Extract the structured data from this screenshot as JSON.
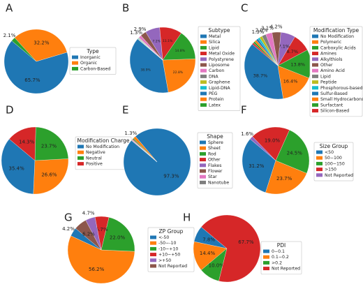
{
  "chart_data": [
    {
      "type": "pie",
      "panel_label": "A",
      "legend_title": "Type",
      "categories": [
        "Inorganic",
        "Organic",
        "Carbon-Based"
      ],
      "values": [
        65.7,
        32.2,
        2.1
      ],
      "value_labels": [
        "65.7%",
        "32.2%",
        "2.1%"
      ],
      "colors": [
        "#1f77b4",
        "#ff7f0e",
        "#2ca02c"
      ]
    },
    {
      "type": "pie",
      "panel_label": "B",
      "legend_title": "Subtype",
      "categories": [
        "Metal",
        "Silica",
        "Lipid",
        "Metal Oxide",
        "Polystyrene",
        "Liposome",
        "Carbon",
        "DNA",
        "Graphene",
        "Lipid-DNA",
        "PEG",
        "Protein",
        "Latex"
      ],
      "values": [
        38.9,
        22.8,
        14.8,
        11.1,
        7.2,
        2.9,
        1.3,
        0.2,
        0.2,
        0.2,
        0.2,
        0.1,
        0.1
      ],
      "value_labels": [
        "38.9%",
        "22.8%",
        "14.8%",
        "11.1%",
        "7.2%",
        "2.9%",
        "1.3%",
        null,
        null,
        null,
        null,
        null,
        null
      ],
      "colors": [
        "#1f77b4",
        "#ff7f0e",
        "#2ca02c",
        "#d62728",
        "#9467bd",
        "#8c564b",
        "#e377c2",
        "#7f7f7f",
        "#bcbd22",
        "#17becf",
        "#1f77b4",
        "#ff7f0e",
        "#2ca02c"
      ]
    },
    {
      "type": "pie",
      "panel_label": "C",
      "legend_title": "Modification Type",
      "categories": [
        "No Modification",
        "Polymeric",
        "Carboxylic Acids",
        "Amines",
        "Alkylthiols",
        "Other",
        "Amino Acid",
        "Lipid",
        "Peptide",
        "Phosphorous-based",
        "Sulfur-Based",
        "Small Hydrocarbons",
        "Surfactant",
        "Silicon-Based"
      ],
      "values": [
        38.7,
        16.4,
        13.8,
        8.7,
        7.1,
        4.2,
        3.1,
        2.0,
        1.3,
        1.0,
        1.0,
        1.0,
        0.9,
        0.8
      ],
      "value_labels": [
        "38.7%",
        "16.4%",
        "13.8%",
        "8.7%",
        "7.1%",
        "4.2%",
        "3.1%",
        "2.0%",
        "1.3%",
        null,
        null,
        null,
        null,
        null
      ],
      "colors": [
        "#1f77b4",
        "#ff7f0e",
        "#2ca02c",
        "#d62728",
        "#9467bd",
        "#8c564b",
        "#e377c2",
        "#7f7f7f",
        "#bcbd22",
        "#17becf",
        "#1f77b4",
        "#ff7f0e",
        "#2ca02c",
        "#d62728"
      ]
    },
    {
      "type": "pie",
      "panel_label": "D",
      "legend_title": "Modification Charge",
      "categories": [
        "No Modification",
        "Negative",
        "Neutral",
        "Positive"
      ],
      "values": [
        35.4,
        26.6,
        23.7,
        14.3
      ],
      "value_labels": [
        "35.4%",
        "26.6%",
        "23.7%",
        "14.3%"
      ],
      "colors": [
        "#1f77b4",
        "#ff7f0e",
        "#2ca02c",
        "#d62728"
      ]
    },
    {
      "type": "pie",
      "panel_label": "E",
      "legend_title": "Shape",
      "categories": [
        "Sphere",
        "Sheet",
        "Rod",
        "Other",
        "Flakes",
        "Flower",
        "Star",
        "Nanotube"
      ],
      "values": [
        97.3,
        1.3,
        0.5,
        0.3,
        0.2,
        0.2,
        0.1,
        0.1
      ],
      "value_labels": [
        "97.3%",
        "1.3%",
        null,
        null,
        null,
        null,
        null,
        null
      ],
      "colors": [
        "#1f77b4",
        "#ff7f0e",
        "#2ca02c",
        "#d62728",
        "#9467bd",
        "#8c564b",
        "#e377c2",
        "#7f7f7f"
      ]
    },
    {
      "type": "pie",
      "panel_label": "F",
      "legend_title": "Size Group",
      "categories": [
        "<50",
        "50−100",
        "100−150",
        ">150",
        "Not Reported"
      ],
      "values": [
        31.2,
        23.7,
        24.5,
        19.0,
        1.6
      ],
      "value_labels": [
        "31.2%",
        "23.7%",
        "24.5%",
        "19.0%",
        "1.6%"
      ],
      "colors": [
        "#1f77b4",
        "#ff7f0e",
        "#2ca02c",
        "#d62728",
        "#9467bd"
      ]
    },
    {
      "type": "pie",
      "panel_label": "G",
      "legend_title": "ZP Group",
      "categories": [
        "<-50",
        "-50−-10",
        "-10−+10",
        "+10−+50",
        ">+50",
        "Not Reported"
      ],
      "values": [
        4.2,
        56.2,
        22.0,
        6.7,
        4.7,
        6.2
      ],
      "value_labels": [
        "4.2%",
        "56.2%",
        "22.0%",
        "6.7%",
        "4.7%",
        "6.2%"
      ],
      "colors": [
        "#1f77b4",
        "#ff7f0e",
        "#2ca02c",
        "#d62728",
        "#9467bd",
        "#8c564b"
      ]
    },
    {
      "type": "pie",
      "panel_label": "H",
      "legend_title": "PDI",
      "categories": [
        "0−0.1",
        "0.1−0.2",
        ">0.2",
        "Not Reported"
      ],
      "values": [
        7.8,
        14.4,
        10.0,
        67.7
      ],
      "value_labels": [
        "7.8%",
        "14.4%",
        "10.0%",
        "67.7%"
      ],
      "colors": [
        "#1f77b4",
        "#ff7f0e",
        "#2ca02c",
        "#d62728"
      ]
    }
  ]
}
